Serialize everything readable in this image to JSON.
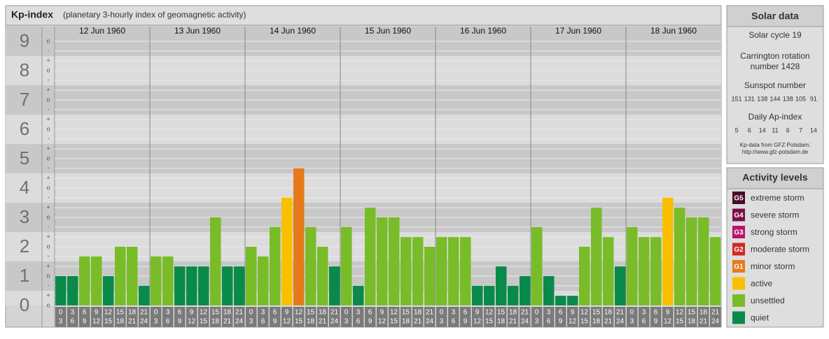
{
  "chart_data": {
    "type": "bar",
    "title": "Kp-index",
    "subtitle": "(planetary 3-hourly index of geomagnetic activity)",
    "ylim": [
      0,
      9.5
    ],
    "yticks": [
      0,
      1,
      2,
      3,
      4,
      5,
      6,
      7,
      8,
      9
    ],
    "minor_yticks": [
      {
        "value": 0,
        "label": "o"
      },
      {
        "value": 0.33,
        "label": "+"
      },
      {
        "value": 0.67,
        "label": "-"
      },
      {
        "value": 1,
        "label": "o"
      },
      {
        "value": 1.33,
        "label": "+"
      },
      {
        "value": 1.67,
        "label": "-"
      },
      {
        "value": 2,
        "label": "o"
      },
      {
        "value": 2.33,
        "label": "+"
      },
      {
        "value": 2.67,
        "label": "-"
      },
      {
        "value": 3,
        "label": "o"
      },
      {
        "value": 3.33,
        "label": "+"
      },
      {
        "value": 3.67,
        "label": "-"
      },
      {
        "value": 4,
        "label": "o"
      },
      {
        "value": 4.33,
        "label": "+"
      },
      {
        "value": 4.67,
        "label": "-"
      },
      {
        "value": 5,
        "label": "o"
      },
      {
        "value": 5.33,
        "label": "+"
      },
      {
        "value": 5.67,
        "label": "-"
      },
      {
        "value": 6,
        "label": "o"
      },
      {
        "value": 6.33,
        "label": "+"
      },
      {
        "value": 6.67,
        "label": "-"
      },
      {
        "value": 7,
        "label": "o"
      },
      {
        "value": 7.33,
        "label": "+"
      },
      {
        "value": 7.67,
        "label": "-"
      },
      {
        "value": 8,
        "label": "o"
      },
      {
        "value": 8.33,
        "label": "+"
      },
      {
        "value": 8.67,
        "label": "-"
      },
      {
        "value": 9,
        "label": "o"
      }
    ],
    "hours": [
      0,
      3,
      6,
      9,
      12,
      15,
      18,
      21,
      24
    ],
    "grid": true,
    "series": [
      {
        "name": "12 Jun 1960",
        "values": [
          1,
          1,
          1.67,
          1.67,
          1,
          2,
          2,
          0.67
        ],
        "colors": [
          "#0a8a4a",
          "#0a8a4a",
          "#78bc28",
          "#78bc28",
          "#0a8a4a",
          "#78bc28",
          "#78bc28",
          "#0a8a4a"
        ]
      },
      {
        "name": "13 Jun 1960",
        "values": [
          1.67,
          1.67,
          1.33,
          1.33,
          1.33,
          3,
          1.33,
          1.33
        ],
        "colors": [
          "#78bc28",
          "#78bc28",
          "#0a8a4a",
          "#0a8a4a",
          "#0a8a4a",
          "#78bc28",
          "#0a8a4a",
          "#0a8a4a"
        ]
      },
      {
        "name": "14 Jun 1960",
        "values": [
          2,
          1.67,
          2.67,
          3.67,
          4.67,
          2.67,
          2,
          1.33
        ],
        "colors": [
          "#78bc28",
          "#78bc28",
          "#78bc28",
          "#f8c000",
          "#e67a1a",
          "#78bc28",
          "#78bc28",
          "#0a8a4a"
        ]
      },
      {
        "name": "15 Jun 1960",
        "values": [
          2.67,
          0.67,
          3.33,
          3,
          3,
          2.33,
          2.33,
          2
        ],
        "colors": [
          "#78bc28",
          "#0a8a4a",
          "#78bc28",
          "#78bc28",
          "#78bc28",
          "#78bc28",
          "#78bc28",
          "#78bc28"
        ]
      },
      {
        "name": "16 Jun 1960",
        "values": [
          2.33,
          2.33,
          2.33,
          0.67,
          0.67,
          1.33,
          0.67,
          1
        ],
        "colors": [
          "#78bc28",
          "#78bc28",
          "#78bc28",
          "#0a8a4a",
          "#0a8a4a",
          "#0a8a4a",
          "#0a8a4a",
          "#0a8a4a"
        ]
      },
      {
        "name": "17 Jun 1960",
        "values": [
          2.67,
          1,
          0.33,
          0.33,
          2,
          3.33,
          2.33,
          1.33
        ],
        "colors": [
          "#78bc28",
          "#0a8a4a",
          "#0a8a4a",
          "#0a8a4a",
          "#78bc28",
          "#78bc28",
          "#78bc28",
          "#0a8a4a"
        ]
      },
      {
        "name": "18 Jun 1960",
        "values": [
          2.67,
          2.33,
          2.33,
          3.67,
          3.33,
          3,
          3,
          2.33
        ],
        "colors": [
          "#78bc28",
          "#78bc28",
          "#78bc28",
          "#f8c000",
          "#78bc28",
          "#78bc28",
          "#78bc28",
          "#78bc28"
        ]
      }
    ]
  },
  "solar_data": {
    "title": "Solar data",
    "solar_cycle": "Solar cycle 19",
    "carrington": [
      "Carrington rotation",
      "number 1428"
    ],
    "sunspot_title": "Sunspot number",
    "sunspot_numbers": [
      151,
      131,
      138,
      144,
      138,
      105,
      91
    ],
    "ap_title": "Daily Ap-index",
    "ap_index": [
      5,
      6,
      14,
      11,
      6,
      7,
      14
    ],
    "source": [
      "Kp-data from GFZ Potsdam:",
      "http://www.gfz-potsdam.de"
    ]
  },
  "activity_levels": {
    "title": "Activity levels",
    "levels": [
      {
        "badge": "G5",
        "name": "extreme storm",
        "color": "#4a0a2a"
      },
      {
        "badge": "G4",
        "name": "severe storm",
        "color": "#7a0f48"
      },
      {
        "badge": "G3",
        "name": "strong storm",
        "color": "#b4166e"
      },
      {
        "badge": "G2",
        "name": "moderate storm",
        "color": "#d02a22"
      },
      {
        "badge": "G1",
        "name": "minor storm",
        "color": "#e67a1a"
      },
      {
        "name": "active",
        "color": "#f8c000"
      },
      {
        "name": "unsettled",
        "color": "#78bc28"
      },
      {
        "name": "quiet",
        "color": "#0a8a4a"
      }
    ]
  }
}
